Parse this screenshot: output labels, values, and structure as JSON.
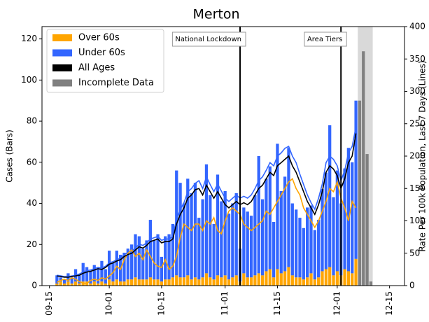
{
  "chart_data": {
    "type": "bar",
    "title": "Merton",
    "ylabel": "Cases (Bars)",
    "y2label": "Rate Per 100k Population, Last 7 Days (Lines)",
    "x": [
      "09-17",
      "09-18",
      "09-19",
      "09-20",
      "09-21",
      "09-22",
      "09-23",
      "09-24",
      "09-25",
      "09-26",
      "09-27",
      "09-28",
      "09-29",
      "09-30",
      "10-01",
      "10-02",
      "10-03",
      "10-04",
      "10-05",
      "10-06",
      "10-07",
      "10-08",
      "10-09",
      "10-10",
      "10-11",
      "10-12",
      "10-13",
      "10-14",
      "10-15",
      "10-16",
      "10-17",
      "10-18",
      "10-19",
      "10-20",
      "10-21",
      "10-22",
      "10-23",
      "10-24",
      "10-25",
      "10-26",
      "10-27",
      "10-28",
      "10-29",
      "10-30",
      "10-31",
      "11-01",
      "11-02",
      "11-03",
      "11-04",
      "11-05",
      "11-06",
      "11-07",
      "11-08",
      "11-09",
      "11-10",
      "11-11",
      "11-12",
      "11-13",
      "11-14",
      "11-15",
      "11-16",
      "11-17",
      "11-18",
      "11-19",
      "11-20",
      "11-21",
      "11-22",
      "11-23",
      "11-24",
      "11-25",
      "11-26",
      "11-27",
      "11-28",
      "11-29",
      "11-30",
      "12-01",
      "12-02",
      "12-03",
      "12-04",
      "12-05",
      "12-06"
    ],
    "xlim": [
      "09-13",
      "12-19"
    ],
    "xticks": [
      "09-15",
      "10-01",
      "10-15",
      "11-01",
      "11-15",
      "12-01",
      "12-15"
    ],
    "ylim": [
      0,
      126
    ],
    "yticks": [
      0,
      20,
      40,
      60,
      80,
      100,
      120
    ],
    "y2lim": [
      0,
      400
    ],
    "y2ticks": [
      0,
      50,
      100,
      150,
      200,
      250,
      300,
      350,
      400
    ],
    "series": [
      {
        "name": "Over 60s",
        "color": "#ffa500",
        "values": [
          1,
          2,
          1,
          2,
          1,
          2,
          1,
          2,
          2,
          1,
          2,
          1,
          2,
          1,
          3,
          2,
          3,
          2,
          2,
          3,
          3,
          4,
          3,
          3,
          3,
          4,
          3,
          3,
          2,
          3,
          3,
          4,
          5,
          4,
          4,
          5,
          3,
          4,
          3,
          4,
          6,
          4,
          3,
          5,
          4,
          5,
          3,
          4,
          5,
          2,
          6,
          4,
          4,
          5,
          6,
          5,
          7,
          8,
          4,
          8,
          6,
          7,
          9,
          5,
          4,
          4,
          3,
          4,
          6,
          3,
          4,
          7,
          8,
          9,
          5,
          7,
          5,
          8,
          7,
          6,
          13
        ],
        "rates": [
          5,
          8,
          10,
          8,
          12,
          10,
          6,
          4,
          3,
          8,
          10,
          8,
          12,
          10,
          15,
          20,
          30,
          25,
          40,
          50,
          55,
          45,
          50,
          40,
          55,
          45,
          35,
          30,
          28,
          40,
          25,
          30,
          45,
          75,
          95,
          90,
          85,
          95,
          95,
          85,
          100,
          95,
          105,
          85,
          80,
          100,
          115,
          120,
          115,
          110,
          95,
          90,
          85,
          90,
          95,
          100,
          115,
          110,
          120,
          130,
          140,
          150,
          160,
          165,
          150,
          140,
          120,
          110,
          100,
          90,
          100,
          115,
          130,
          150,
          145,
          160,
          135,
          120,
          100,
          130,
          120
        ]
      },
      {
        "name": "Under 60s",
        "color": "#3366ff",
        "values": [
          4,
          2,
          2,
          4,
          3,
          6,
          4,
          9,
          7,
          6,
          8,
          8,
          10,
          7,
          14,
          9,
          14,
          13,
          14,
          15,
          17,
          21,
          21,
          15,
          19,
          28,
          19,
          22,
          12,
          21,
          22,
          26,
          51,
          46,
          36,
          47,
          42,
          46,
          30,
          38,
          53,
          40,
          27,
          49,
          37,
          41,
          32,
          36,
          40,
          16,
          32,
          32,
          30,
          39,
          57,
          37,
          45,
          50,
          27,
          61,
          40,
          46,
          58,
          35,
          33,
          29,
          25,
          34,
          33,
          24,
          28,
          40,
          47,
          69,
          38,
          49,
          35,
          49,
          60,
          54,
          77
        ],
        "rates": [
          16,
          15,
          14,
          14,
          15,
          16,
          18,
          21,
          23,
          24,
          26,
          28,
          27,
          30,
          35,
          37,
          40,
          42,
          48,
          51,
          53,
          58,
          64,
          62,
          66,
          72,
          74,
          76,
          70,
          72,
          72,
          76,
          102,
          118,
          128,
          145,
          150,
          158,
          162,
          150,
          168,
          156,
          145,
          157,
          146,
          135,
          130,
          135,
          140,
          135,
          138,
          135,
          140,
          150,
          162,
          168,
          178,
          190,
          185,
          200,
          205,
          212,
          215,
          200,
          190,
          172,
          156,
          140,
          128,
          118,
          135,
          157,
          190,
          200,
          195,
          185,
          162,
          178,
          205,
          215,
          245
        ]
      },
      {
        "name": "All Ages",
        "color": "#000000",
        "axis": "y2",
        "values": [
          15,
          14,
          13,
          13,
          14,
          15,
          16,
          19,
          21,
          22,
          24,
          26,
          25,
          28,
          33,
          35,
          38,
          40,
          45,
          48,
          50,
          55,
          60,
          58,
          62,
          68,
          70,
          72,
          66,
          68,
          68,
          72,
          95,
          110,
          120,
          135,
          140,
          148,
          150,
          140,
          155,
          145,
          135,
          145,
          135,
          125,
          120,
          125,
          130,
          125,
          128,
          125,
          130,
          140,
          150,
          155,
          165,
          175,
          170,
          185,
          190,
          195,
          200,
          185,
          175,
          160,
          145,
          130,
          120,
          110,
          125,
          145,
          175,
          185,
          180,
          170,
          150,
          165,
          190,
          200,
          235
        ]
      },
      {
        "name": "Incomplete Data",
        "color": "#808080",
        "x": [
          "12-07",
          "12-08",
          "12-09",
          "12-10"
        ],
        "values": [
          90,
          114,
          64,
          2
        ]
      }
    ],
    "annotations": [
      {
        "text": "National Lockdown",
        "x": "11-05"
      },
      {
        "text": "Area Tiers",
        "x": "12-02"
      }
    ],
    "legend": "upper left"
  }
}
